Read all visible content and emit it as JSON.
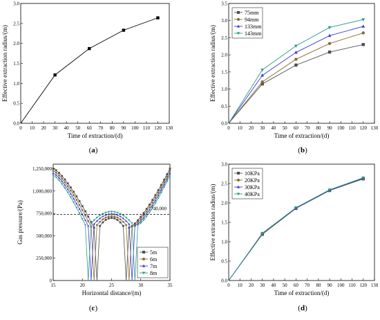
{
  "chart_data": [
    {
      "panel_label": "a",
      "type": "line",
      "xlabel": "Time of extraction/(d)",
      "ylabel": "Effective extraction radius/(m)",
      "xlim": [
        0,
        130
      ],
      "ylim": [
        0,
        3.0
      ],
      "xticks": [
        0,
        10,
        20,
        30,
        40,
        50,
        60,
        70,
        80,
        90,
        100,
        110,
        120,
        130
      ],
      "yticks": [
        0.0,
        0.5,
        1.0,
        1.5,
        2.0,
        2.5,
        3.0
      ],
      "x": [
        0,
        30,
        60,
        90,
        120
      ],
      "series": [
        {
          "name": "",
          "color": "#000000",
          "marker": "square",
          "values": [
            0,
            1.21,
            1.87,
            2.33,
            2.64
          ]
        }
      ],
      "legend": "none",
      "grid": false
    },
    {
      "panel_label": "b",
      "type": "line",
      "xlabel": "Time of extraction/(d)",
      "ylabel": "Effective extraction radius/(m)",
      "xlim": [
        0,
        130
      ],
      "ylim": [
        0,
        3.5
      ],
      "xticks": [
        0,
        10,
        20,
        30,
        40,
        50,
        60,
        70,
        80,
        90,
        100,
        110,
        120,
        130
      ],
      "yticks": [
        0.0,
        0.5,
        1.0,
        1.5,
        2.0,
        2.5,
        3.0,
        3.5
      ],
      "x": [
        0,
        30,
        60,
        90,
        120
      ],
      "series": [
        {
          "name": "75mm",
          "color": "#4d4d4d",
          "marker": "square",
          "values": [
            0,
            1.15,
            1.7,
            2.08,
            2.3
          ]
        },
        {
          "name": "94mm",
          "color": "#8b6a2e",
          "marker": "circle",
          "values": [
            0,
            1.21,
            1.87,
            2.33,
            2.64
          ]
        },
        {
          "name": "133mm",
          "color": "#3a3ad6",
          "marker": "triangle-up",
          "values": [
            0,
            1.4,
            2.07,
            2.56,
            2.83
          ]
        },
        {
          "name": "143mm",
          "color": "#2a9a8a",
          "marker": "triangle-down",
          "values": [
            0,
            1.56,
            2.26,
            2.8,
            3.03
          ]
        }
      ],
      "legend": "top-left",
      "grid": false
    },
    {
      "panel_label": "c",
      "type": "line",
      "xlabel": "Horizontal distance/(m)",
      "ylabel": "Gas pressure/(Pa)",
      "xlim": [
        15,
        35
      ],
      "ylim": [
        0,
        1300000
      ],
      "xticks": [
        15,
        20,
        25,
        30,
        35
      ],
      "yticks": [
        0,
        250000,
        500000,
        750000,
        1000000,
        1250000
      ],
      "ytick_labels": [
        "0",
        "250,000",
        "500,000",
        "750,000",
        "1,000,000",
        "1,250,000"
      ],
      "reference_line": {
        "value": 740000,
        "label": "740,000",
        "style": "dashed"
      },
      "series": [
        {
          "name": "5m",
          "color": "#4d4d4d",
          "marker": "square",
          "drop_left": 22.5,
          "drop_right": 27.5,
          "center": 700000
        },
        {
          "name": "6m",
          "color": "#8b6a2e",
          "marker": "circle",
          "drop_left": 22.0,
          "drop_right": 28.0,
          "center": 720000
        },
        {
          "name": "7m",
          "color": "#3a3ad6",
          "marker": "triangle-up",
          "drop_left": 21.5,
          "drop_right": 28.5,
          "center": 745000
        },
        {
          "name": "8m",
          "color": "#2a9a8a",
          "marker": "triangle-down",
          "drop_left": 21.0,
          "drop_right": 29.0,
          "center": 770000
        }
      ],
      "legend": "bottom-right",
      "grid": false
    },
    {
      "panel_label": "d",
      "type": "line",
      "xlabel": "Time of extraction/(d)",
      "ylabel": "Effective extraction radius/(m)",
      "xlim": [
        0,
        130
      ],
      "ylim": [
        0,
        3.0
      ],
      "xticks": [
        0,
        10,
        20,
        30,
        40,
        50,
        60,
        70,
        80,
        90,
        100,
        110,
        120,
        130
      ],
      "yticks": [
        0.0,
        0.5,
        1.0,
        1.5,
        2.0,
        2.5,
        3.0
      ],
      "x": [
        0,
        30,
        60,
        90,
        120
      ],
      "series": [
        {
          "name": "10KPa",
          "color": "#4d4d4d",
          "marker": "square",
          "values": [
            0,
            1.19,
            1.86,
            2.32,
            2.62
          ]
        },
        {
          "name": "20KPa",
          "color": "#8b6a2e",
          "marker": "circle",
          "values": [
            0,
            1.2,
            1.87,
            2.33,
            2.63
          ]
        },
        {
          "name": "30KPa",
          "color": "#3a3ad6",
          "marker": "triangle-up",
          "values": [
            0,
            1.21,
            1.87,
            2.33,
            2.64
          ]
        },
        {
          "name": "40KPa",
          "color": "#2a9a8a",
          "marker": "triangle-down",
          "values": [
            0,
            1.22,
            1.88,
            2.34,
            2.65
          ]
        }
      ],
      "legend": "top-left",
      "grid": false
    }
  ]
}
